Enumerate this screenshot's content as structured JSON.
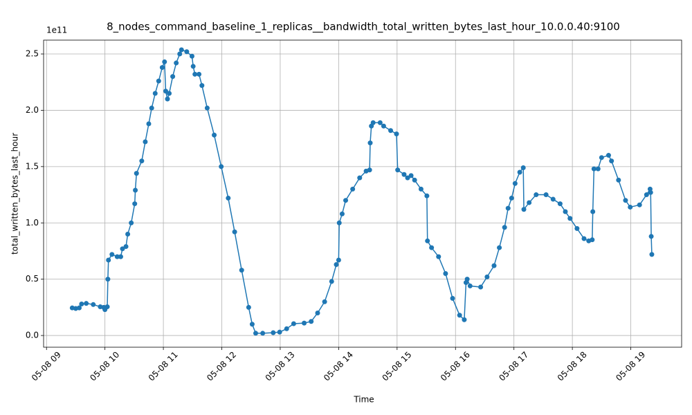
{
  "chart_data": {
    "type": "line",
    "title": "8_nodes_command_baseline_1_replicas__bandwidth_total_written_bytes_last_hour_10.0.0.40:9100",
    "x_label": "Time",
    "y_label": "total_written_bytes_last_hour",
    "y_offset_label": "1e11",
    "color": "#1f77b4",
    "grid": true,
    "markers": true,
    "x": [
      9.44,
      9.5,
      9.56,
      9.6,
      9.68,
      9.8,
      9.92,
      9.98,
      10.0,
      10.04,
      10.05,
      10.06,
      10.12,
      10.21,
      10.27,
      10.3,
      10.36,
      10.39,
      10.45,
      10.51,
      10.52,
      10.54,
      10.63,
      10.69,
      10.75,
      10.8,
      10.86,
      10.92,
      10.98,
      11.02,
      11.04,
      11.07,
      11.1,
      11.16,
      11.22,
      11.28,
      11.31,
      11.4,
      11.49,
      11.51,
      11.54,
      11.61,
      11.66,
      11.75,
      11.87,
      11.99,
      12.11,
      12.22,
      12.34,
      12.46,
      12.52,
      12.58,
      12.7,
      12.88,
      12.99,
      13.11,
      13.23,
      13.41,
      13.53,
      13.64,
      13.76,
      13.88,
      13.96,
      14.0,
      14.01,
      14.06,
      14.12,
      14.24,
      14.36,
      14.47,
      14.53,
      14.54,
      14.56,
      14.59,
      14.71,
      14.77,
      14.89,
      14.99,
      15.01,
      15.12,
      15.18,
      15.24,
      15.3,
      15.41,
      15.51,
      15.52,
      15.59,
      15.71,
      15.83,
      15.95,
      16.07,
      16.15,
      16.18,
      16.2,
      16.25,
      16.43,
      16.54,
      16.66,
      16.75,
      16.84,
      16.9,
      16.96,
      17.02,
      17.1,
      17.16,
      17.17,
      17.26,
      17.38,
      17.55,
      17.67,
      17.79,
      17.88,
      17.96,
      18.08,
      18.2,
      18.28,
      18.34,
      18.35,
      18.37,
      18.44,
      18.5,
      18.62,
      18.67,
      18.79,
      18.91,
      18.99,
      19.15,
      19.27,
      19.33,
      19.34,
      19.35,
      19.36
    ],
    "values": [
      0.245,
      0.24,
      0.245,
      0.28,
      0.285,
      0.275,
      0.255,
      0.25,
      0.23,
      0.255,
      0.5,
      0.67,
      0.72,
      0.7,
      0.7,
      0.77,
      0.79,
      0.9,
      1.0,
      1.17,
      1.29,
      1.44,
      1.55,
      1.72,
      1.88,
      2.02,
      2.15,
      2.26,
      2.38,
      2.43,
      2.17,
      2.1,
      2.15,
      2.3,
      2.42,
      2.5,
      2.537,
      2.52,
      2.48,
      2.39,
      2.32,
      2.32,
      2.22,
      2.02,
      1.78,
      1.5,
      1.22,
      0.92,
      0.58,
      0.25,
      0.1,
      0.02,
      0.02,
      0.025,
      0.03,
      0.06,
      0.105,
      0.11,
      0.125,
      0.2,
      0.3,
      0.48,
      0.63,
      0.67,
      1.0,
      1.08,
      1.2,
      1.3,
      1.4,
      1.46,
      1.47,
      1.71,
      1.86,
      1.89,
      1.89,
      1.86,
      1.82,
      1.79,
      1.47,
      1.43,
      1.4,
      1.42,
      1.38,
      1.3,
      1.24,
      0.84,
      0.78,
      0.7,
      0.55,
      0.33,
      0.18,
      0.14,
      0.47,
      0.5,
      0.44,
      0.43,
      0.52,
      0.62,
      0.78,
      0.96,
      1.13,
      1.22,
      1.35,
      1.45,
      1.49,
      1.12,
      1.18,
      1.25,
      1.25,
      1.21,
      1.17,
      1.1,
      1.04,
      0.95,
      0.86,
      0.84,
      0.85,
      1.1,
      1.48,
      1.48,
      1.58,
      1.6,
      1.55,
      1.38,
      1.2,
      1.14,
      1.16,
      1.25,
      1.3,
      1.27,
      0.88,
      0.72
    ],
    "xlim": [
      8.95,
      19.87
    ],
    "xticks": [
      {
        "value": 9,
        "label": "05-08 09"
      },
      {
        "value": 10,
        "label": "05-08 10"
      },
      {
        "value": 11,
        "label": "05-08 11"
      },
      {
        "value": 12,
        "label": "05-08 12"
      },
      {
        "value": 13,
        "label": "05-08 13"
      },
      {
        "value": 14,
        "label": "05-08 14"
      },
      {
        "value": 15,
        "label": "05-08 15"
      },
      {
        "value": 16,
        "label": "05-08 16"
      },
      {
        "value": 17,
        "label": "05-08 17"
      },
      {
        "value": 18,
        "label": "05-08 18"
      },
      {
        "value": 19,
        "label": "05-08 19"
      }
    ],
    "ylim": [
      -0.104,
      2.623
    ],
    "yticks": [
      {
        "value": 0,
        "label": "0.0"
      },
      0.5,
      {
        "value": 1,
        "label": "1.0"
      },
      1.5,
      {
        "value": 2,
        "label": "2.0"
      },
      2.5
    ]
  }
}
